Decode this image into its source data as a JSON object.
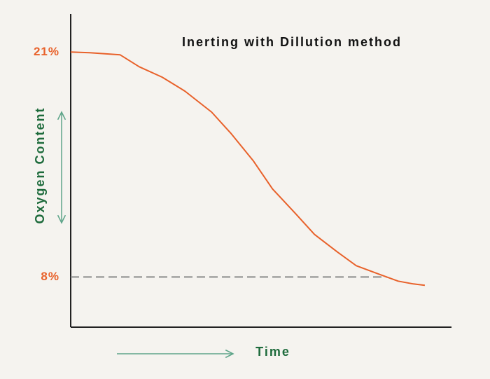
{
  "chart_data": {
    "type": "line",
    "title": "Inerting with Dillution method",
    "y_label": "Oxygen Content",
    "x_label": "Time",
    "x": [
      0,
      5,
      13,
      18,
      24,
      30,
      37,
      42,
      48,
      53,
      59,
      64,
      70,
      75,
      81,
      86,
      90,
      93
    ],
    "series": [
      {
        "color": "#e8612a",
        "values": [
          21,
          20.96,
          20.84,
          20.15,
          19.55,
          18.74,
          17.53,
          16.32,
          14.7,
          13.09,
          11.67,
          10.46,
          9.45,
          8.65,
          8.16,
          7.76,
          7.6,
          7.52
        ]
      }
    ],
    "xlim": [
      0,
      100
    ],
    "ylim": [
      5.1,
      23.2
    ],
    "yticks": [
      {
        "value": 21,
        "label": "21%"
      },
      {
        "value": 8,
        "label": "8%"
      }
    ],
    "reference_tick": 1,
    "grid": false
  }
}
